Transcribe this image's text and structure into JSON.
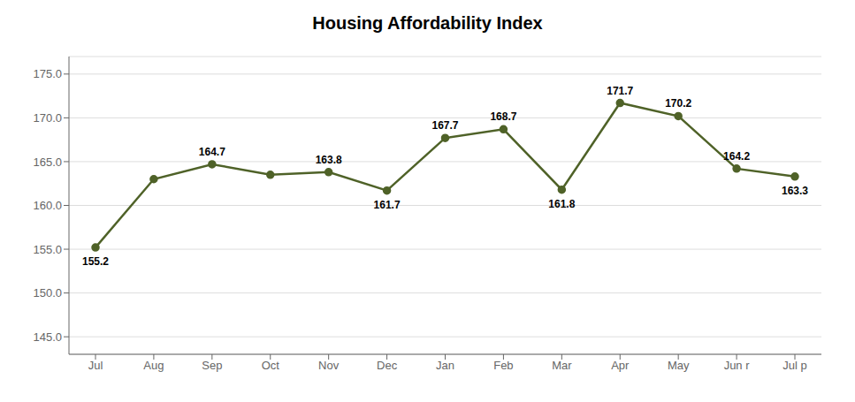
{
  "chart_data": {
    "type": "line",
    "title": "Housing Affordability Index",
    "categories": [
      "Jul",
      "Aug",
      "Sep",
      "Oct",
      "Nov",
      "Dec",
      "Jan",
      "Feb",
      "Mar",
      "Apr",
      "May",
      "Jun r",
      "Jul p"
    ],
    "values": [
      155.2,
      163.0,
      164.7,
      163.5,
      163.8,
      161.7,
      167.7,
      168.7,
      161.8,
      171.7,
      170.2,
      164.2,
      163.3
    ],
    "data_labels": true,
    "value_labels": [
      "155.2",
      null,
      "164.7",
      null,
      "163.8",
      "161.7",
      "167.7",
      "168.7",
      "161.8",
      "171.7",
      "170.2",
      "164.2",
      "163.3"
    ],
    "color": "#4f6228",
    "marker": "circle",
    "line_style": "solid",
    "ylim": [
      143.0,
      177.0
    ],
    "yticks": [
      {
        "value": 145,
        "label": "145.0"
      },
      {
        "value": 150,
        "label": "150.0"
      },
      {
        "value": 155,
        "label": "155.0"
      },
      {
        "value": 160,
        "label": "160.0"
      },
      {
        "value": 165,
        "label": "165.0"
      },
      {
        "value": 170,
        "label": "170.0"
      },
      {
        "value": 175,
        "label": "175.0"
      }
    ],
    "grid": true
  }
}
